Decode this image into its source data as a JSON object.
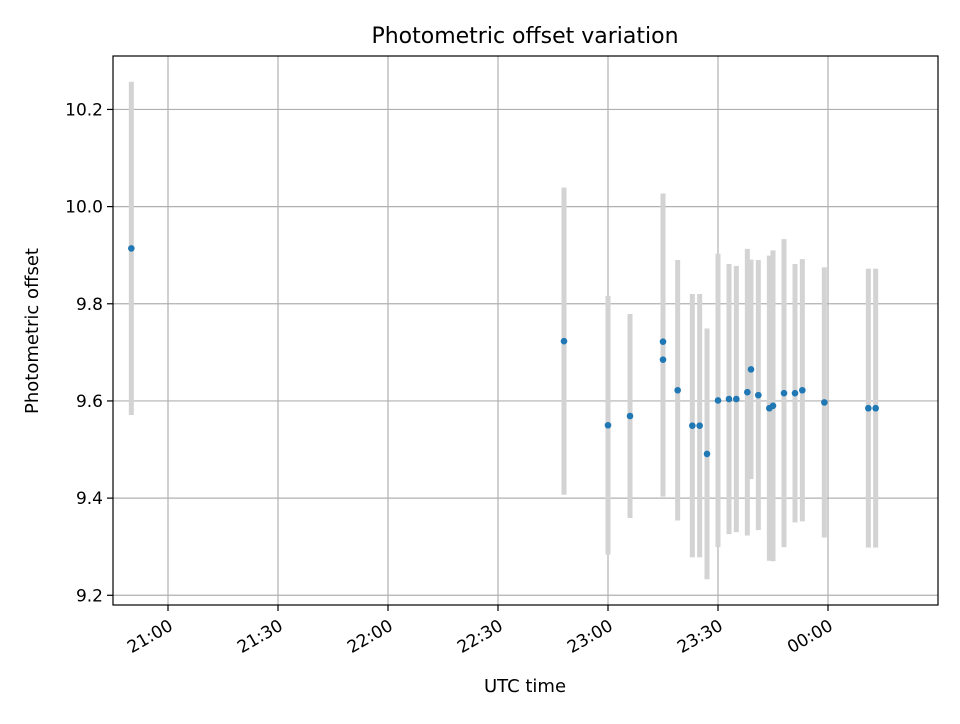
{
  "chart_data": {
    "type": "scatter",
    "title": "Photometric offset variation",
    "xlabel": "UTC time",
    "ylabel": "Photometric offset",
    "x_unit": "UTC time",
    "xlim": [
      "20:45",
      "00:30"
    ],
    "ylim": [
      9.18,
      10.31
    ],
    "xticks": [
      "21:00",
      "21:30",
      "22:00",
      "22:30",
      "23:00",
      "23:30",
      "00:00"
    ],
    "yticks": [
      9.2,
      9.4,
      9.6,
      9.8,
      10.0,
      10.2
    ],
    "ytick_labels": [
      "9.2",
      "9.4",
      "9.6",
      "9.8",
      "10.0",
      "10.2"
    ],
    "grid": true,
    "marker_color": "#1f77b4",
    "errorbar_color": "#d3d3d3",
    "points": [
      {
        "t": "20:50",
        "y": 9.914,
        "err": 0.343
      },
      {
        "t": "22:48",
        "y": 9.723,
        "err": 0.316
      },
      {
        "t": "23:00",
        "y": 9.55,
        "err": 0.266
      },
      {
        "t": "23:06",
        "y": 9.569,
        "err": 0.21
      },
      {
        "t": "23:15",
        "y": 9.722,
        "err": 0.305
      },
      {
        "t": "23:15",
        "y": 9.685,
        "err": 0.282
      },
      {
        "t": "23:19",
        "y": 9.622,
        "err": 0.268
      },
      {
        "t": "23:23",
        "y": 9.549,
        "err": 0.271
      },
      {
        "t": "23:25",
        "y": 9.549,
        "err": 0.271
      },
      {
        "t": "23:27",
        "y": 9.491,
        "err": 0.258
      },
      {
        "t": "23:30",
        "y": 9.601,
        "err": 0.302
      },
      {
        "t": "23:33",
        "y": 9.604,
        "err": 0.278
      },
      {
        "t": "23:35",
        "y": 9.604,
        "err": 0.274
      },
      {
        "t": "23:38",
        "y": 9.618,
        "err": 0.295
      },
      {
        "t": "23:39",
        "y": 9.665,
        "err": 0.226
      },
      {
        "t": "23:41",
        "y": 9.612,
        "err": 0.278
      },
      {
        "t": "23:44",
        "y": 9.585,
        "err": 0.314
      },
      {
        "t": "23:45",
        "y": 9.59,
        "err": 0.32
      },
      {
        "t": "23:48",
        "y": 9.616,
        "err": 0.317
      },
      {
        "t": "23:51",
        "y": 9.616,
        "err": 0.266
      },
      {
        "t": "23:53",
        "y": 9.622,
        "err": 0.27
      },
      {
        "t": "23:59",
        "y": 9.597,
        "err": 0.278
      },
      {
        "t": "00:11",
        "y": 9.585,
        "err": 0.287
      },
      {
        "t": "00:13",
        "y": 9.585,
        "err": 0.287
      }
    ]
  }
}
